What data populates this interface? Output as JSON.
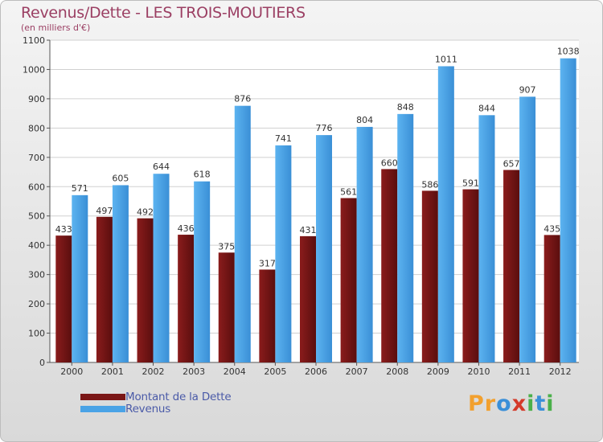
{
  "chart_data": {
    "type": "bar",
    "title": "Revenus/Dette - LES TROIS-MOUTIERS",
    "subtitle": "(en milliers d'€)",
    "categories": [
      "2000",
      "2001",
      "2002",
      "2003",
      "2004",
      "2005",
      "2006",
      "2007",
      "2008",
      "2009",
      "2010",
      "2011",
      "2012"
    ],
    "series": [
      {
        "name": "Montant de la Dette",
        "color": "#7a1616",
        "values": [
          433,
          497,
          492,
          436,
          375,
          317,
          431,
          561,
          660,
          586,
          591,
          657,
          435
        ]
      },
      {
        "name": "Revenus",
        "color": "#4aa3e6",
        "values": [
          571,
          605,
          644,
          618,
          876,
          741,
          776,
          804,
          848,
          1011,
          844,
          907,
          1038
        ]
      }
    ],
    "yticks": [
      0,
      100,
      200,
      300,
      400,
      500,
      600,
      700,
      800,
      900,
      1000,
      1100
    ],
    "ylim": [
      0,
      1100
    ],
    "grid": true,
    "xlabel": "",
    "ylabel": ""
  },
  "legend": {
    "debt_label": "Montant de la Dette",
    "revenue_label": "Revenus"
  },
  "logo": {
    "text_chars": [
      "P",
      "r",
      "o",
      "x",
      "i",
      "t",
      "i"
    ],
    "colors": [
      "#f2a02e",
      "#f2a02e",
      "#3a8fd8",
      "#d43a2a",
      "#4ab04a",
      "#3a8fd8",
      "#4ab04a"
    ]
  }
}
